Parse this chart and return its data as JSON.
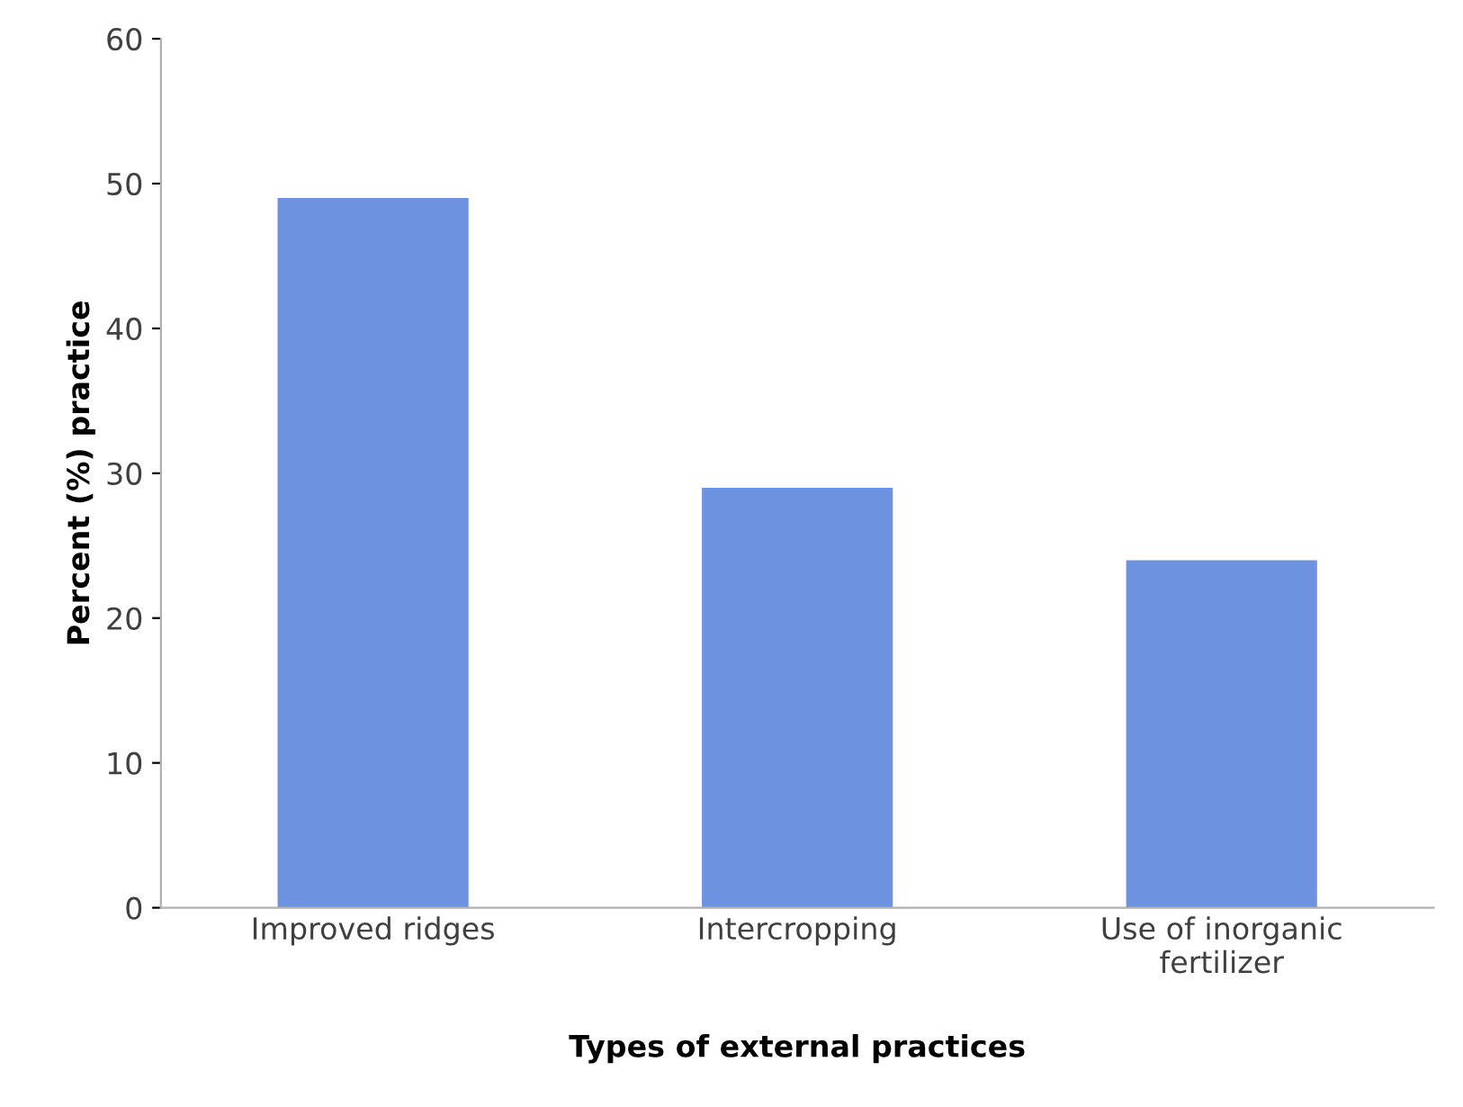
{
  "chart_data": {
    "type": "bar",
    "xlabel": "Types of external practices",
    "ylabel": "Percent (%) practice",
    "categories": [
      "Improved ridges",
      "Intercropping",
      "Use of inorganic\nfertilizer"
    ],
    "values": [
      49,
      29,
      24
    ],
    "color": "#6d93e0",
    "ylim": [
      0,
      60
    ],
    "yticks": [
      0,
      10,
      20,
      30,
      40,
      50,
      60
    ],
    "grid": false,
    "legend": false
  }
}
